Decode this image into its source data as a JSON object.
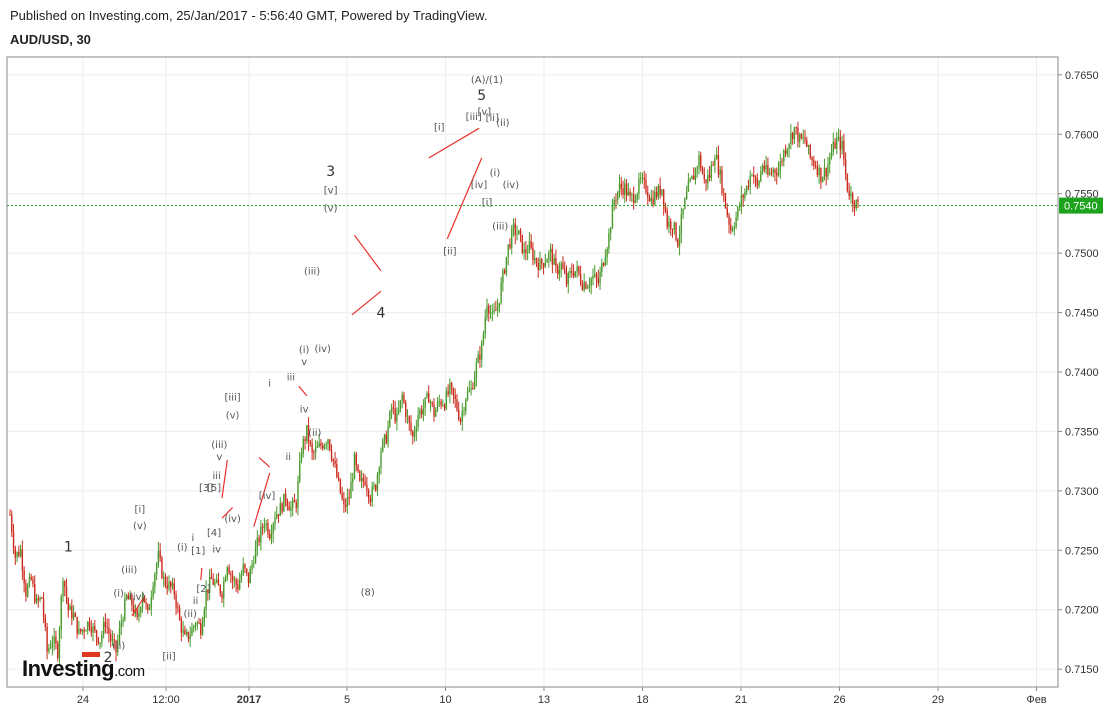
{
  "header": {
    "published": "Published on Investing.com, 25/Jan/2017 - 5:56:40 GMT, Powered by TradingView.",
    "symbol": "AUD/USD, 30"
  },
  "logo": {
    "main": "Investing",
    "suffix": ".com"
  },
  "colors": {
    "up": "#4a9a2c",
    "down": "#cc2a1d",
    "wave_line": "#e8302a",
    "current_price": "#1ea31e",
    "grid": "#ececec"
  },
  "chart_data": {
    "type": "candlestick",
    "xlabel": "",
    "ylabel": "",
    "ylim": [
      0.7135,
      0.7665
    ],
    "y_ticks": [
      "0.7650",
      "0.7600",
      "0.7550",
      "0.7500",
      "0.7450",
      "0.7400",
      "0.7350",
      "0.7300",
      "0.7250",
      "0.7200",
      "0.7150"
    ],
    "x_ticks": [
      {
        "label": "24",
        "bold": false
      },
      {
        "label": "12:00",
        "bold": false
      },
      {
        "label": "2017",
        "bold": true
      },
      {
        "label": "5",
        "bold": false
      },
      {
        "label": "10",
        "bold": false
      },
      {
        "label": "13",
        "bold": false
      },
      {
        "label": "18",
        "bold": false
      },
      {
        "label": "21",
        "bold": false
      },
      {
        "label": "26",
        "bold": false
      },
      {
        "label": "29",
        "bold": false
      },
      {
        "label": "Фев",
        "bold": false
      }
    ],
    "current_price": {
      "value": 0.754,
      "label": "0.7540"
    },
    "price_path": [
      [
        0,
        0.728
      ],
      [
        1,
        0.7245
      ],
      [
        2,
        0.725
      ],
      [
        3,
        0.7215
      ],
      [
        4,
        0.7225
      ],
      [
        5,
        0.7205
      ],
      [
        6,
        0.721
      ],
      [
        7,
        0.7165
      ],
      [
        8,
        0.7175
      ],
      [
        9,
        0.7165
      ],
      [
        10,
        0.723
      ],
      [
        11,
        0.72
      ],
      [
        12,
        0.7195
      ],
      [
        13,
        0.718
      ],
      [
        14,
        0.7185
      ],
      [
        15,
        0.719
      ],
      [
        16,
        0.718
      ],
      [
        17,
        0.7175
      ],
      [
        18,
        0.719
      ],
      [
        19,
        0.7175
      ],
      [
        20,
        0.7165
      ],
      [
        21,
        0.719
      ],
      [
        22,
        0.721
      ],
      [
        23,
        0.7205
      ],
      [
        24,
        0.719
      ],
      [
        25,
        0.7215
      ],
      [
        26,
        0.7195
      ],
      [
        27,
        0.7225
      ],
      [
        28,
        0.7245
      ],
      [
        29,
        0.7225
      ],
      [
        30,
        0.722
      ],
      [
        31,
        0.7215
      ],
      [
        32,
        0.719
      ],
      [
        33,
        0.7175
      ],
      [
        34,
        0.718
      ],
      [
        35,
        0.719
      ],
      [
        36,
        0.7185
      ],
      [
        37,
        0.7215
      ],
      [
        38,
        0.7225
      ],
      [
        39,
        0.722
      ],
      [
        40,
        0.7215
      ],
      [
        41,
        0.724
      ],
      [
        42,
        0.7225
      ],
      [
        43,
        0.722
      ],
      [
        44,
        0.7235
      ],
      [
        45,
        0.7225
      ],
      [
        46,
        0.7245
      ],
      [
        47,
        0.726
      ],
      [
        48,
        0.7275
      ],
      [
        49,
        0.7265
      ],
      [
        50,
        0.728
      ],
      [
        51,
        0.7285
      ],
      [
        52,
        0.7295
      ],
      [
        53,
        0.7285
      ],
      [
        54,
        0.729
      ],
      [
        55,
        0.7335
      ],
      [
        56,
        0.735
      ],
      [
        57,
        0.733
      ],
      [
        58,
        0.7335
      ],
      [
        59,
        0.734
      ],
      [
        60,
        0.7345
      ],
      [
        61,
        0.7325
      ],
      [
        62,
        0.7305
      ],
      [
        63,
        0.7285
      ],
      [
        64,
        0.7295
      ],
      [
        65,
        0.7325
      ],
      [
        66,
        0.7305
      ],
      [
        67,
        0.731
      ],
      [
        68,
        0.7295
      ],
      [
        69,
        0.7305
      ],
      [
        70,
        0.7335
      ],
      [
        71,
        0.7345
      ],
      [
        72,
        0.737
      ],
      [
        73,
        0.736
      ],
      [
        74,
        0.738
      ],
      [
        75,
        0.736
      ],
      [
        76,
        0.7345
      ],
      [
        77,
        0.7365
      ],
      [
        78,
        0.737
      ],
      [
        79,
        0.738
      ],
      [
        80,
        0.7365
      ],
      [
        81,
        0.7375
      ],
      [
        82,
        0.7375
      ],
      [
        83,
        0.7385
      ],
      [
        84,
        0.7375
      ],
      [
        85,
        0.736
      ],
      [
        86,
        0.738
      ],
      [
        87,
        0.7385
      ],
      [
        88,
        0.7405
      ],
      [
        89,
        0.742
      ],
      [
        90,
        0.746
      ],
      [
        91,
        0.7445
      ],
      [
        92,
        0.7455
      ],
      [
        93,
        0.748
      ],
      [
        94,
        0.7505
      ],
      [
        95,
        0.752
      ],
      [
        96,
        0.7515
      ],
      [
        97,
        0.75
      ],
      [
        98,
        0.7505
      ],
      [
        99,
        0.7495
      ],
      [
        100,
        0.749
      ],
      [
        101,
        0.7495
      ],
      [
        102,
        0.75
      ],
      [
        103,
        0.7485
      ],
      [
        104,
        0.749
      ],
      [
        105,
        0.7475
      ],
      [
        106,
        0.7485
      ],
      [
        107,
        0.7485
      ],
      [
        108,
        0.7475
      ],
      [
        109,
        0.7475
      ],
      [
        110,
        0.748
      ],
      [
        111,
        0.7475
      ],
      [
        112,
        0.7495
      ],
      [
        113,
        0.7515
      ],
      [
        114,
        0.7545
      ],
      [
        115,
        0.7555
      ],
      [
        116,
        0.7555
      ],
      [
        117,
        0.7545
      ],
      [
        118,
        0.755
      ],
      [
        119,
        0.756
      ],
      [
        120,
        0.7555
      ],
      [
        121,
        0.7545
      ],
      [
        122,
        0.755
      ],
      [
        123,
        0.7555
      ],
      [
        124,
        0.7525
      ],
      [
        125,
        0.7525
      ],
      [
        126,
        0.751
      ],
      [
        127,
        0.7535
      ],
      [
        128,
        0.7555
      ],
      [
        129,
        0.7565
      ],
      [
        130,
        0.758
      ],
      [
        131,
        0.756
      ],
      [
        132,
        0.7565
      ],
      [
        133,
        0.7585
      ],
      [
        134,
        0.7565
      ],
      [
        135,
        0.754
      ],
      [
        136,
        0.752
      ],
      [
        137,
        0.753
      ],
      [
        138,
        0.7545
      ],
      [
        139,
        0.7555
      ],
      [
        140,
        0.757
      ],
      [
        141,
        0.7555
      ],
      [
        142,
        0.7575
      ],
      [
        143,
        0.7565
      ],
      [
        144,
        0.757
      ],
      [
        145,
        0.757
      ],
      [
        146,
        0.7585
      ],
      [
        147,
        0.7595
      ],
      [
        148,
        0.7605
      ],
      [
        149,
        0.7595
      ],
      [
        150,
        0.7595
      ],
      [
        151,
        0.758
      ],
      [
        152,
        0.7575
      ],
      [
        153,
        0.7565
      ],
      [
        154,
        0.757
      ],
      [
        155,
        0.7585
      ],
      [
        156,
        0.7595
      ],
      [
        157,
        0.759
      ],
      [
        158,
        0.7555
      ],
      [
        159,
        0.7545
      ],
      [
        160,
        0.754
      ]
    ],
    "wave_labels": [
      {
        "text": "1",
        "size": "big",
        "i": 11,
        "p": 0.7249
      },
      {
        "text": "2",
        "size": "big",
        "i": 18.5,
        "p": 0.7156
      },
      {
        "text": "(ii)",
        "i": 20.5,
        "p": 0.7167
      },
      {
        "text": "(i)",
        "i": 20.5,
        "p": 0.7211
      },
      {
        "text": "(iii)",
        "i": 22.5,
        "p": 0.7231
      },
      {
        "text": "(iv)",
        "i": 24,
        "p": 0.7208
      },
      {
        "text": "[i]",
        "i": 24.5,
        "p": 0.7282
      },
      {
        "text": "(v)",
        "i": 24.5,
        "p": 0.7268
      },
      {
        "text": "[ii]",
        "i": 30,
        "p": 0.7158
      },
      {
        "text": "(i)",
        "i": 32.5,
        "p": 0.725
      },
      {
        "text": "(ii)",
        "i": 34,
        "p": 0.7194
      },
      {
        "text": "i",
        "i": 34.5,
        "p": 0.7258
      },
      {
        "text": "[1]",
        "i": 35.5,
        "p": 0.7247
      },
      {
        "text": "ii",
        "i": 35,
        "p": 0.7205
      },
      {
        "text": "[2]",
        "i": 36.5,
        "p": 0.7215
      },
      {
        "text": "[3]",
        "i": 37,
        "p": 0.73
      },
      {
        "text": "[5]",
        "i": 38.5,
        "p": 0.73
      },
      {
        "text": "iii",
        "i": 39,
        "p": 0.731
      },
      {
        "text": "[4]",
        "i": 38.5,
        "p": 0.7262
      },
      {
        "text": "iv",
        "i": 39,
        "p": 0.7248
      },
      {
        "text": "(iii)",
        "i": 39.5,
        "p": 0.7336
      },
      {
        "text": "v",
        "i": 39.5,
        "p": 0.7326
      },
      {
        "text": "(iv)",
        "i": 42,
        "p": 0.7274
      },
      {
        "text": "[iii]",
        "i": 42,
        "p": 0.7376
      },
      {
        "text": "(v)",
        "i": 42,
        "p": 0.7361
      },
      {
        "text": "[iv]",
        "i": 48.5,
        "p": 0.7293
      },
      {
        "text": "i",
        "i": 49,
        "p": 0.7388
      },
      {
        "text": "ii",
        "i": 52.5,
        "p": 0.7326
      },
      {
        "text": "iii",
        "i": 53,
        "p": 0.7393
      },
      {
        "text": "iv",
        "i": 55.5,
        "p": 0.7366
      },
      {
        "text": "v",
        "i": 55.5,
        "p": 0.7406
      },
      {
        "text": "(i)",
        "i": 55.5,
        "p": 0.7416
      },
      {
        "text": "(ii)",
        "i": 57.5,
        "p": 0.7346
      },
      {
        "text": "(iii)",
        "i": 57,
        "p": 0.7482
      },
      {
        "text": "(iv)",
        "i": 59,
        "p": 0.7417
      },
      {
        "text": "3",
        "size": "big",
        "i": 60.5,
        "p": 0.7565
      },
      {
        "text": "[v]",
        "i": 60.5,
        "p": 0.755
      },
      {
        "text": "(v)",
        "i": 60.5,
        "p": 0.7535
      },
      {
        "text": "4",
        "size": "big",
        "i": 70,
        "p": 0.7446
      },
      {
        "text": "(8)",
        "i": 67.5,
        "p": 0.7212
      },
      {
        "text": "[i]",
        "i": 81,
        "p": 0.7603
      },
      {
        "text": "[ii]",
        "i": 83,
        "p": 0.7499
      },
      {
        "text": "[iii]",
        "i": 87.5,
        "p": 0.7612
      },
      {
        "text": "[v]",
        "i": 89.5,
        "p": 0.7616
      },
      {
        "text": "(A)/(1)",
        "i": 90,
        "p": 0.7643
      },
      {
        "text": "5",
        "size": "big",
        "i": 89,
        "p": 0.7629
      },
      {
        "text": "[ii]",
        "i": 91,
        "p": 0.7611
      },
      {
        "text": "(ii)",
        "i": 93,
        "p": 0.7607
      },
      {
        "text": "[iv]",
        "i": 88.5,
        "p": 0.7555
      },
      {
        "text": "(i)",
        "i": 91.5,
        "p": 0.7565
      },
      {
        "text": "[i]",
        "i": 90,
        "p": 0.754
      },
      {
        "text": "(iv)",
        "i": 94.5,
        "p": 0.7555
      },
      {
        "text": "(iii)",
        "i": 92.5,
        "p": 0.752
      }
    ],
    "wave_lines": [
      [
        [
          23,
          0.7195
        ],
        [
          25.5,
          0.7212
        ]
      ],
      [
        [
          36,
          0.7225
        ],
        [
          36.2,
          0.7235
        ]
      ],
      [
        [
          40,
          0.7277
        ],
        [
          42,
          0.7286
        ]
      ],
      [
        [
          40,
          0.7294
        ],
        [
          41,
          0.7326
        ]
      ],
      [
        [
          46,
          0.727
        ],
        [
          49,
          0.7315
        ]
      ],
      [
        [
          47,
          0.7328
        ],
        [
          49,
          0.732
        ]
      ],
      [
        [
          54.5,
          0.7388
        ],
        [
          56,
          0.738
        ]
      ],
      [
        [
          65,
          0.7515
        ],
        [
          70,
          0.7485
        ]
      ],
      [
        [
          64.5,
          0.7448
        ],
        [
          70,
          0.7468
        ]
      ],
      [
        [
          79,
          0.758
        ],
        [
          88.5,
          0.7605
        ]
      ],
      [
        [
          82.5,
          0.7512
        ],
        [
          89,
          0.758
        ]
      ]
    ]
  }
}
